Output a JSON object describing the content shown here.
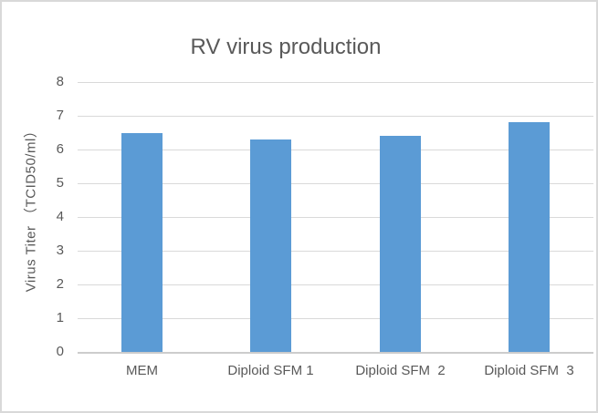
{
  "window": {
    "background": "#ffffff",
    "border_color": "#d9d9d9"
  },
  "chart_data": {
    "type": "bar",
    "title": "RV virus production",
    "categories": [
      "MEM",
      "Diploid SFM 1",
      "Diploid SFM  2",
      "Diploid SFM  3"
    ],
    "values": [
      6.5,
      6.3,
      6.4,
      6.8
    ],
    "xlabel": "",
    "ylabel": "Virus Titer （TCID50/ml）",
    "ylim": [
      0,
      8
    ],
    "yticks": [
      0,
      1,
      2,
      3,
      4,
      5,
      6,
      7,
      8
    ],
    "grid": true,
    "legend": false,
    "bar_color": "#5B9BD5",
    "text_color": "#595959",
    "grid_color": "#D9D9D9",
    "axis_color": "#CCCCCC"
  }
}
